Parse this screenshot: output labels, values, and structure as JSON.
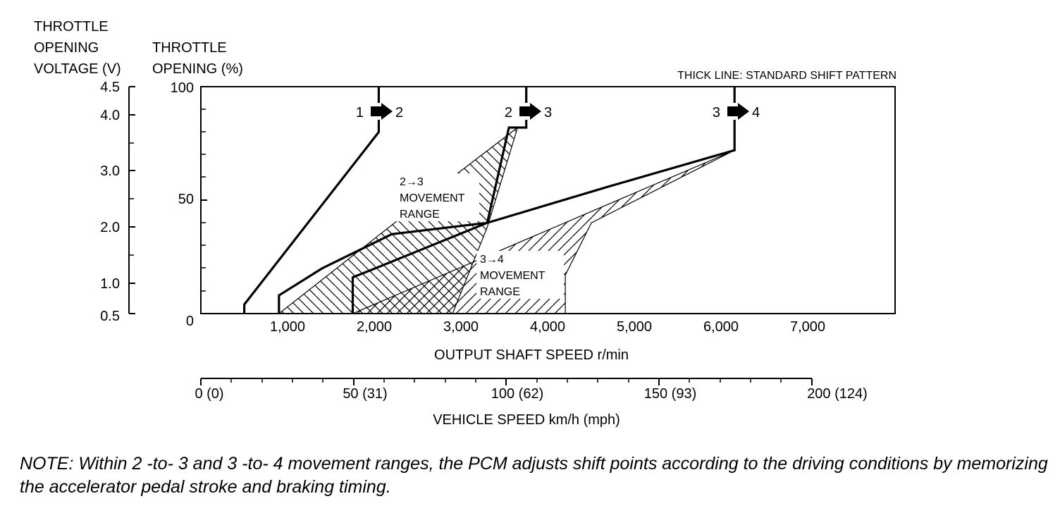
{
  "chart_data": {
    "type": "line",
    "legend_text": "THICK LINE: STANDARD SHIFT PATTERN",
    "left_axis_title": [
      "THROTTLE",
      "OPENING",
      "VOLTAGE (V)"
    ],
    "left_axis_ticks": [
      "4.5",
      "4.0",
      "3.0",
      "2.0",
      "1.0",
      "0.5"
    ],
    "ylabel": [
      "THROTTLE",
      "OPENING (%)"
    ],
    "y_ticks": [
      "100",
      "50",
      "0"
    ],
    "ylim": [
      0,
      100
    ],
    "xlabel": "OUTPUT SHAFT SPEED r/min",
    "x_ticks": [
      "1,000",
      "2,000",
      "3,000",
      "4,000",
      "5,000",
      "6,000",
      "7,000"
    ],
    "xlim": [
      0,
      8000
    ],
    "x2label": "VEHICLE SPEED km/h (mph)",
    "x2_ticks": [
      "0 (0)",
      "50 (31)",
      "100 (62)",
      "150 (93)",
      "200 (124)"
    ],
    "x2lim": [
      0,
      200
    ],
    "shift_lines": [
      {
        "name": "1-2",
        "points": [
          [
            500,
            0
          ],
          [
            500,
            4
          ],
          [
            2050,
            80
          ],
          [
            2050,
            100
          ]
        ]
      },
      {
        "name": "2-3",
        "points": [
          [
            900,
            0
          ],
          [
            900,
            8
          ],
          [
            1400,
            20
          ],
          [
            2200,
            35
          ],
          [
            3300,
            40
          ],
          [
            3550,
            82
          ],
          [
            3750,
            82
          ],
          [
            3750,
            100
          ]
        ]
      },
      {
        "name": "3-4",
        "points": [
          [
            1750,
            0
          ],
          [
            1750,
            16
          ],
          [
            1950,
            19
          ],
          [
            3300,
            40
          ],
          [
            4700,
            56
          ],
          [
            6150,
            72
          ],
          [
            6150,
            100
          ]
        ]
      }
    ],
    "ranges": [
      {
        "name": "2→3 MOVEMENT RANGE",
        "points": [
          [
            900,
            0
          ],
          [
            2900,
            0
          ],
          [
            3300,
            38
          ],
          [
            3650,
            82
          ],
          [
            3000,
            63
          ]
        ]
      },
      {
        "name": "3→4 MOVEMENT RANGE",
        "points": [
          [
            1750,
            0
          ],
          [
            4200,
            0
          ],
          [
            4200,
            17
          ],
          [
            4500,
            40
          ],
          [
            6150,
            72
          ]
        ]
      }
    ],
    "shift_labels": [
      {
        "from": "1",
        "to": "2"
      },
      {
        "from": "2",
        "to": "3"
      },
      {
        "from": "3",
        "to": "4"
      }
    ],
    "range_labels": [
      {
        "lines": [
          "2→3",
          "MOVEMENT",
          "RANGE"
        ]
      },
      {
        "lines": [
          "3→4",
          "MOVEMENT",
          "RANGE"
        ]
      }
    ]
  },
  "note": "NOTE: Within 2 -to- 3 and 3 -to- 4 movement ranges, the PCM adjusts shift points according to the driving conditions by memorizing the accelerator pedal stroke and braking timing."
}
